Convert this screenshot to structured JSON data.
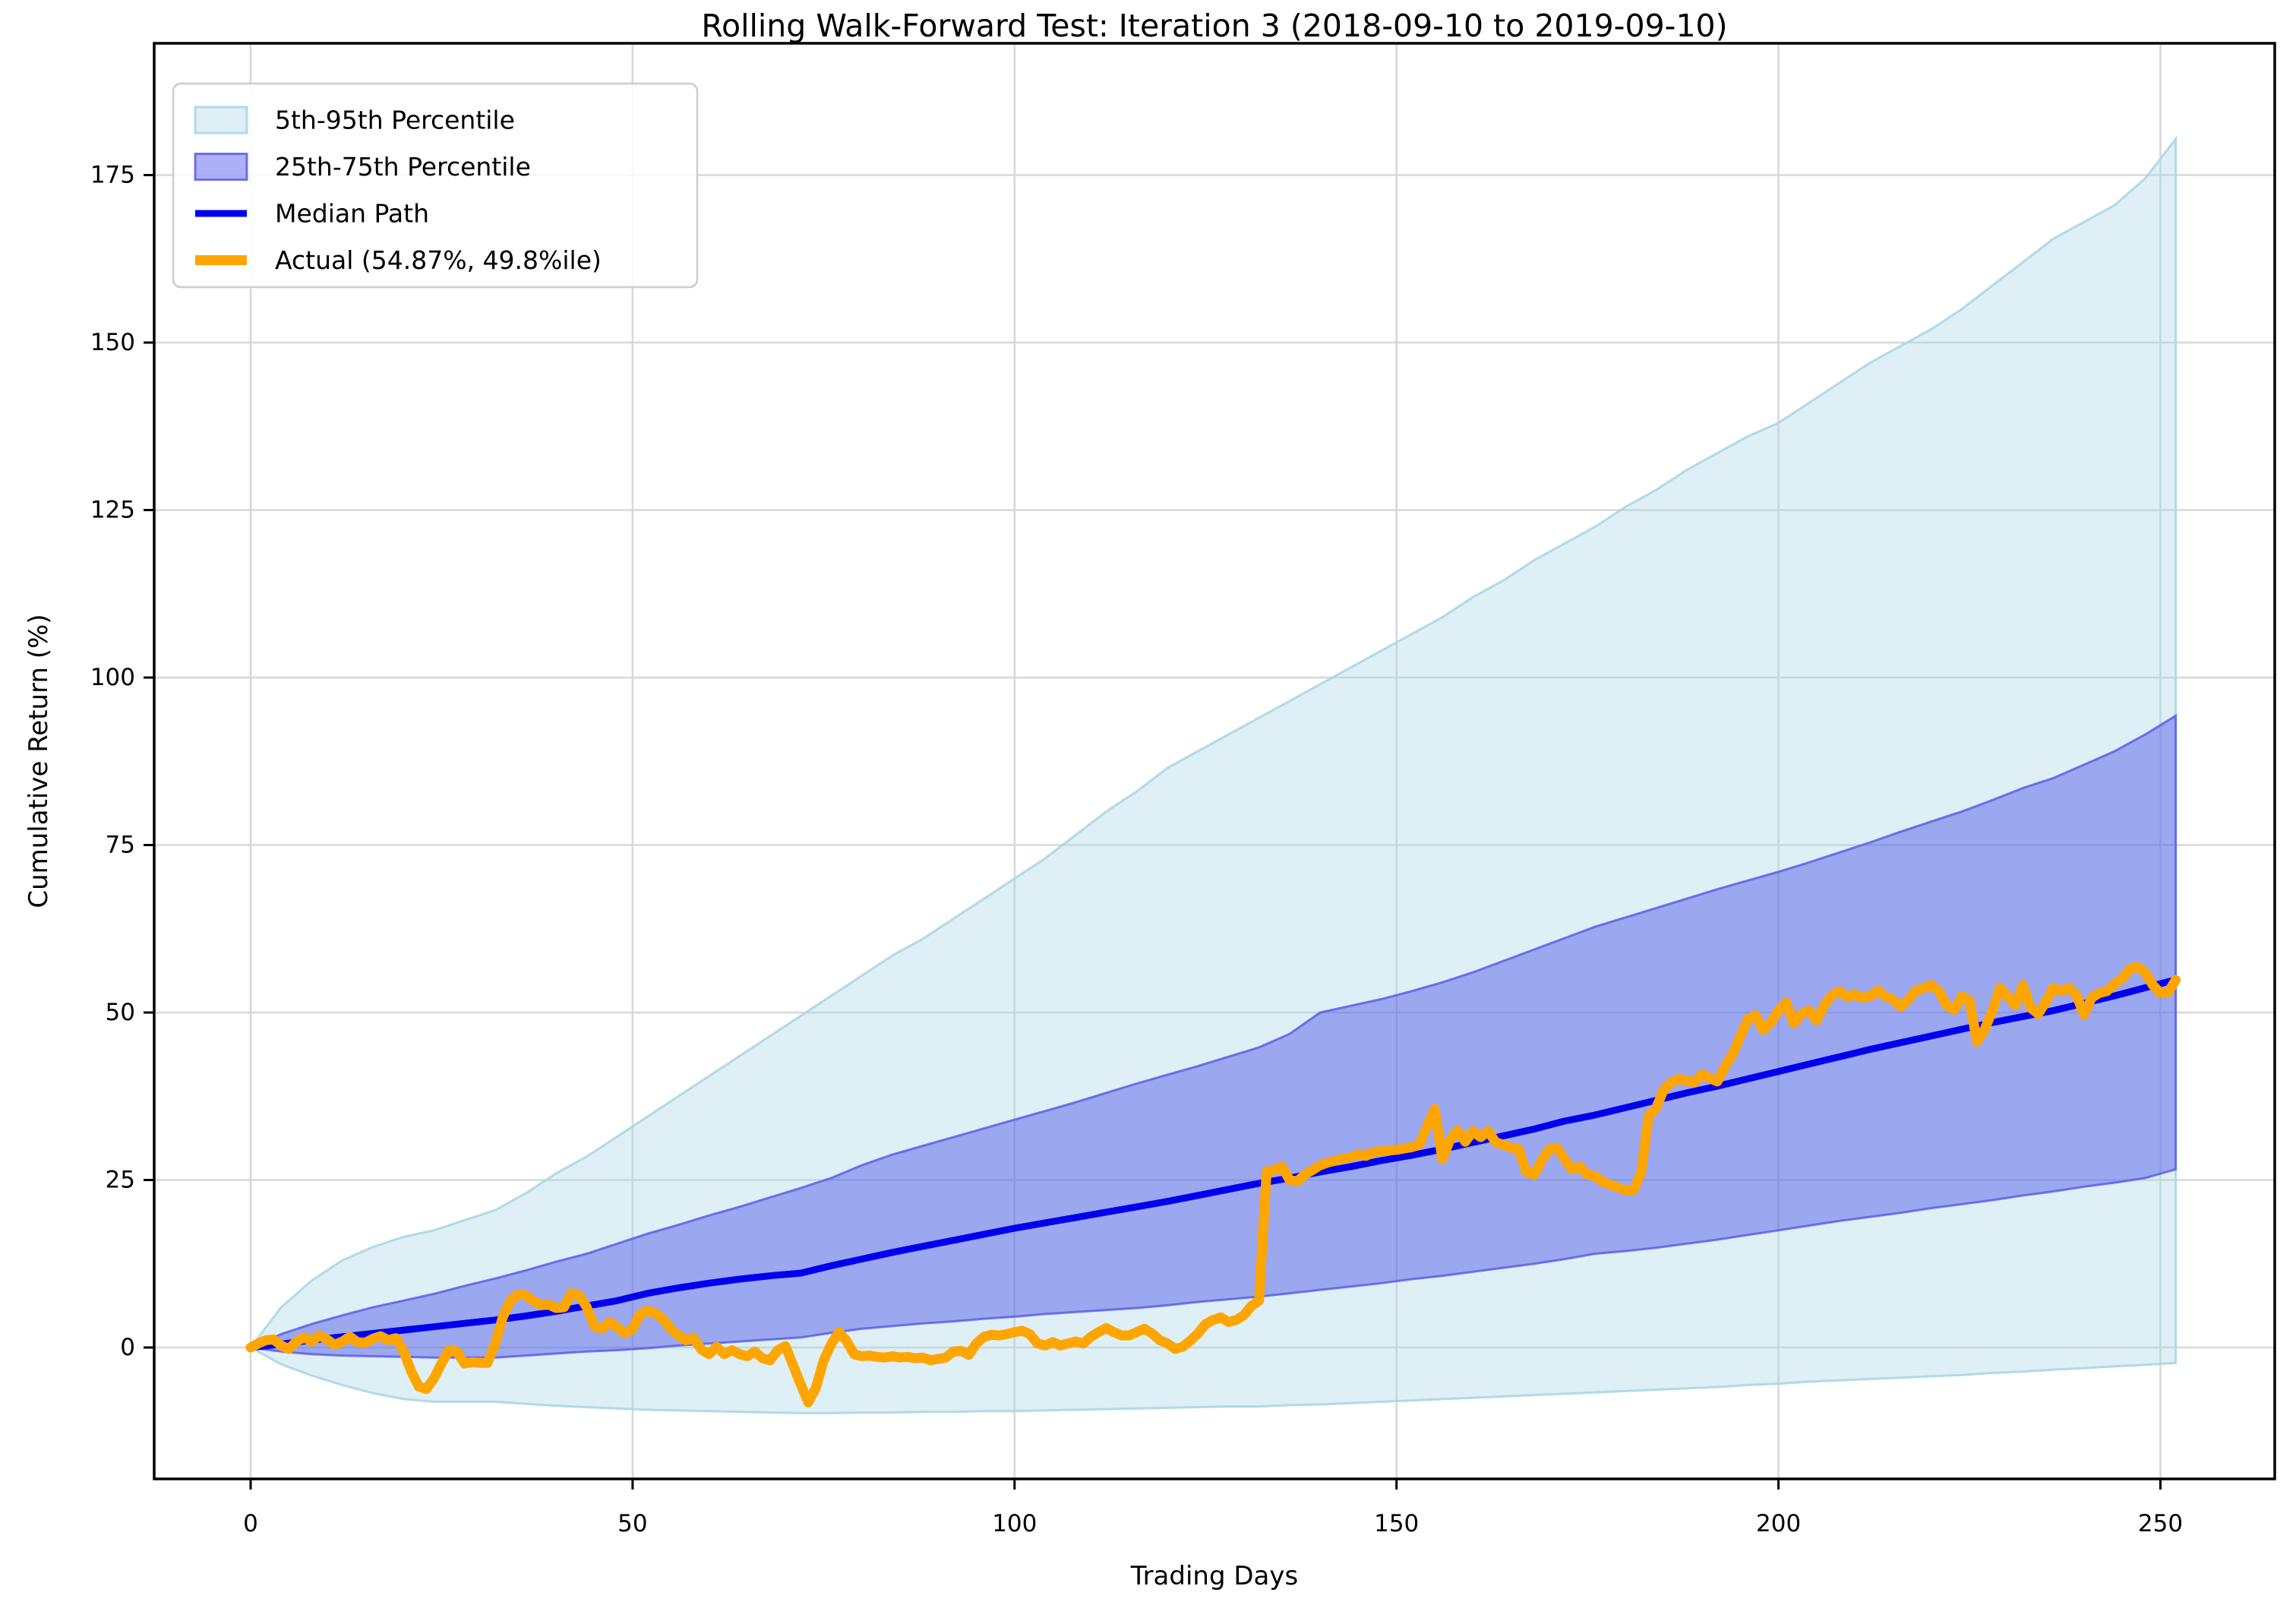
{
  "chart_data": {
    "type": "line",
    "title": "Rolling Walk-Forward Test: Iteration 3 (2018-09-10 to 2019-09-10)",
    "xlabel": "Trading Days",
    "ylabel": "Cumulative Return (%)",
    "xlim": [
      -12.6,
      264.6
    ],
    "ylim": [
      -19.6,
      194.7
    ],
    "x_ticks": [
      0,
      50,
      100,
      150,
      200,
      250
    ],
    "y_ticks": [
      0,
      25,
      50,
      75,
      100,
      125,
      150,
      175
    ],
    "grid": true,
    "legend_position": "upper left",
    "colors": {
      "band_5_95_fill": "rgba(173,216,230,0.4)",
      "band_5_95_edge": "rgba(173,216,230,0.95)",
      "band_25_75_fill": "rgba(62,66,232,0.42)",
      "band_25_75_edge": "rgba(90,94,232,0.85)",
      "median_line": "#0000EE",
      "actual_line": "#FFA500",
      "grid": "#d8d8d8",
      "spine": "#000000",
      "legend_border": "#cccccc"
    },
    "series": [
      {
        "id": "band_5_95",
        "label": "5th-95th Percentile",
        "type": "band",
        "fill": "rgba(173,216,230,0.4)",
        "edge": "rgba(173,216,230,0.95)"
      },
      {
        "id": "band_25_75",
        "label": "25th-75th Percentile",
        "type": "band",
        "fill": "rgba(62,66,232,0.42)",
        "edge": "rgba(90,94,232,0.85)"
      },
      {
        "id": "median",
        "label": "Median Path",
        "type": "line",
        "color": "#0000EE",
        "width": 9
      },
      {
        "id": "actual",
        "label": "Actual (54.87%, 49.8%ile)",
        "type": "line",
        "color": "#FFA500",
        "width": 13
      }
    ],
    "percentile_days": [
      0,
      4,
      8,
      12,
      16,
      20,
      24,
      28,
      32,
      36,
      40,
      44,
      48,
      52,
      56,
      60,
      64,
      68,
      72,
      76,
      80,
      84,
      88,
      92,
      96,
      100,
      104,
      108,
      112,
      116,
      120,
      124,
      128,
      132,
      136,
      140,
      144,
      148,
      152,
      156,
      160,
      164,
      168,
      172,
      176,
      180,
      184,
      188,
      192,
      196,
      200,
      204,
      208,
      212,
      216,
      220,
      224,
      228,
      232,
      236,
      240,
      244,
      248,
      252
    ],
    "p95": [
      0,
      6,
      10,
      13,
      15,
      16.5,
      17.5,
      19,
      20.5,
      23,
      26,
      28.5,
      31.5,
      34.5,
      37.5,
      40.5,
      43.5,
      46.5,
      49.5,
      52.5,
      55.5,
      58.5,
      61,
      64,
      67,
      70,
      73,
      76.5,
      80,
      83,
      86.5,
      89,
      91.5,
      94,
      96.5,
      99,
      101.5,
      104,
      106.5,
      109,
      112,
      114.5,
      117.5,
      120,
      122.5,
      125.5,
      128,
      131,
      133.5,
      136,
      138,
      141,
      144,
      147,
      149.5,
      152,
      155,
      158.5,
      162,
      165.5,
      168,
      170.5,
      174.5,
      180.4
    ],
    "p75": [
      0,
      2,
      3.5,
      4.8,
      6,
      7,
      8,
      9.2,
      10.3,
      11.5,
      12.8,
      14,
      15.5,
      17,
      18.3,
      19.7,
      21,
      22.4,
      23.8,
      25.3,
      27.2,
      28.8,
      30.1,
      31.4,
      32.7,
      34,
      35.3,
      36.6,
      38,
      39.4,
      40.7,
      42,
      43.4,
      44.8,
      46.8,
      50,
      51,
      52,
      53.2,
      54.5,
      56,
      57.7,
      59.4,
      61.1,
      62.8,
      64.2,
      65.6,
      67,
      68.4,
      69.7,
      71,
      72.4,
      73.9,
      75.4,
      77,
      78.5,
      80,
      81.7,
      83.5,
      85,
      87,
      89,
      91.5,
      94.3
    ],
    "median": [
      0,
      0.5,
      1.1,
      1.6,
      2.1,
      2.6,
      3.1,
      3.6,
      4.1,
      4.7,
      5.4,
      6.2,
      7,
      8.1,
      8.9,
      9.6,
      10.2,
      10.7,
      11.1,
      12.2,
      13.2,
      14.2,
      15.1,
      16,
      16.9,
      17.8,
      18.6,
      19.4,
      20.2,
      21,
      21.8,
      22.7,
      23.6,
      24.5,
      25.3,
      26.2,
      27,
      27.9,
      28.7,
      29.6,
      30.6,
      31.6,
      32.6,
      33.8,
      34.7,
      35.8,
      36.9,
      38,
      39,
      40.1,
      41.2,
      42.3,
      43.4,
      44.5,
      45.5,
      46.5,
      47.5,
      48.5,
      49.4,
      50.3,
      51.4,
      52.5,
      53.7,
      54.9
    ],
    "p25": [
      0,
      -0.6,
      -1,
      -1.2,
      -1.3,
      -1.4,
      -1.5,
      -1.5,
      -1.5,
      -1.2,
      -0.9,
      -0.6,
      -0.4,
      -0.1,
      0.3,
      0.6,
      0.9,
      1.2,
      1.5,
      2.2,
      2.8,
      3.2,
      3.6,
      3.9,
      4.3,
      4.6,
      5,
      5.3,
      5.6,
      5.9,
      6.3,
      6.8,
      7.2,
      7.6,
      8.1,
      8.6,
      9.1,
      9.6,
      10.2,
      10.7,
      11.3,
      11.9,
      12.5,
      13.2,
      14,
      14.4,
      14.9,
      15.5,
      16.1,
      16.8,
      17.5,
      18.2,
      18.9,
      19.5,
      20.1,
      20.8,
      21.4,
      22,
      22.7,
      23.3,
      24,
      24.6,
      25.3,
      26.6
    ],
    "p5": [
      0,
      -2.5,
      -4.2,
      -5.6,
      -6.8,
      -7.7,
      -8.1,
      -8.1,
      -8.1,
      -8.4,
      -8.7,
      -8.9,
      -9.1,
      -9.3,
      -9.4,
      -9.5,
      -9.6,
      -9.7,
      -9.8,
      -9.8,
      -9.7,
      -9.7,
      -9.6,
      -9.6,
      -9.5,
      -9.5,
      -9.4,
      -9.3,
      -9.2,
      -9.1,
      -9,
      -8.9,
      -8.8,
      -8.8,
      -8.6,
      -8.5,
      -8.3,
      -8.1,
      -7.9,
      -7.7,
      -7.5,
      -7.3,
      -7.1,
      -6.9,
      -6.7,
      -6.5,
      -6.3,
      -6.1,
      -5.9,
      -5.6,
      -5.4,
      -5.1,
      -4.9,
      -4.7,
      -4.5,
      -4.3,
      -4.1,
      -3.8,
      -3.6,
      -3.3,
      -3.1,
      -2.8,
      -2.6,
      -2.3
    ],
    "actual": {
      "day_start": 0,
      "day_step": 1,
      "final_return_pct": 54.87,
      "final_percentile": 49.8,
      "values": [
        0,
        0.6,
        1.1,
        1.2,
        0.3,
        -0.2,
        0.9,
        1.5,
        0.9,
        1.8,
        1.2,
        0.4,
        0.9,
        1.6,
        0.8,
        0.7,
        1.3,
        1.7,
        1.1,
        1.4,
        -0.5,
        -3.5,
        -5.8,
        -6.2,
        -4.6,
        -2.3,
        -0.4,
        -0.6,
        -2.4,
        -2.2,
        -2.3,
        -2.3,
        0.5,
        4.5,
        7,
        7.9,
        7.8,
        7,
        6.3,
        6.4,
        5.9,
        6,
        8.1,
        7.8,
        6,
        3.2,
        2.8,
        3.8,
        3,
        2.1,
        2.8,
        5,
        5.5,
        5.1,
        4.2,
        2.8,
        1.8,
        1.1,
        1.4,
        -0.3,
        -1,
        0.1,
        -1,
        -0.4,
        -1,
        -1.3,
        -0.6,
        -1.6,
        -1.9,
        -0.4,
        0.2,
        -2.6,
        -5.5,
        -8.2,
        -6,
        -2,
        0.5,
        2.3,
        1,
        -1,
        -1.3,
        -1.2,
        -1.4,
        -1.5,
        -1.3,
        -1.5,
        -1.4,
        -1.6,
        -1.5,
        -1.9,
        -1.7,
        -1.5,
        -0.6,
        -0.5,
        -1.1,
        0.6,
        1.6,
        1.9,
        1.8,
        2,
        2.3,
        2.5,
        2,
        0.6,
        0.3,
        0.8,
        0.3,
        0.6,
        0.9,
        0.6,
        1.6,
        2.3,
        2.9,
        2.3,
        1.8,
        1.8,
        2.3,
        2.8,
        2.1,
        1.1,
        0.6,
        -0.2,
        0.1,
        1,
        2.1,
        3.5,
        4.1,
        4.5,
        3.8,
        4.1,
        4.8,
        6.2,
        7,
        26.3,
        26.5,
        27,
        25,
        24.8,
        25.8,
        26.5,
        27.2,
        27.6,
        27.9,
        28.2,
        28.4,
        28.8,
        28.6,
        29.2,
        29.3,
        29.4,
        29.5,
        29.7,
        29.9,
        30.3,
        33,
        35.6,
        28.1,
        31,
        32.4,
        30.7,
        32.3,
        31.4,
        32.3,
        30.6,
        30.3,
        29.8,
        29.6,
        26.2,
        25.8,
        27.9,
        29.6,
        29.8,
        28.1,
        26.6,
        27,
        25.8,
        25.6,
        24.7,
        24.3,
        23.9,
        23.4,
        23.5,
        26,
        34.5,
        35.8,
        38.5,
        39.6,
        40.1,
        39.8,
        39.6,
        40.8,
        40.2,
        39.7,
        42,
        43.8,
        46.5,
        49,
        49.6,
        47.4,
        48.5,
        50.3,
        51.5,
        48.4,
        49.8,
        50.3,
        48.8,
        51.1,
        52.6,
        53.2,
        52.3,
        52.7,
        52.2,
        52.4,
        53.3,
        52.4,
        51.9,
        50.9,
        51.9,
        53.3,
        53.6,
        54.1,
        53.2,
        51.1,
        50.4,
        52.4,
        51.8,
        45.6,
        47.5,
        50.3,
        53.7,
        52.4,
        51.1,
        54.1,
        50.7,
        49.8,
        51.6,
        53.7,
        53.2,
        53.7,
        52.6,
        49.7,
        52.2,
        52.9,
        53.2,
        54.3,
        55.1,
        56.5,
        56.8,
        56,
        54.1,
        52.9,
        53,
        54.87
      ]
    }
  }
}
